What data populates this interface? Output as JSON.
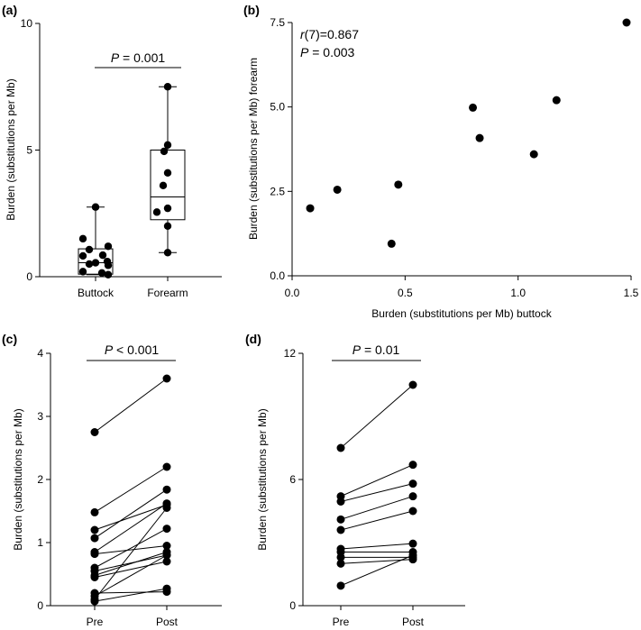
{
  "chart_data": [
    {
      "panel": "(a)",
      "type": "box",
      "ylabel": "Burden (substitutions per Mb)",
      "ylim": [
        0,
        10
      ],
      "yticks": [
        0,
        5,
        10
      ],
      "categories": [
        "Buttock",
        "Forearm"
      ],
      "groups": [
        {
          "name": "Buttock",
          "points": [
            2.75,
            1.5,
            1.2,
            1.07,
            0.85,
            0.82,
            0.6,
            0.55,
            0.5,
            0.45,
            0.2,
            0.15,
            0.08
          ],
          "box": {
            "min": 0.08,
            "q1": 0.1,
            "median": 0.55,
            "q3": 1.1,
            "max": 2.75
          }
        },
        {
          "name": "Forearm",
          "points": [
            7.5,
            5.2,
            4.95,
            4.1,
            3.6,
            2.7,
            2.55,
            2.0,
            0.95
          ],
          "box": {
            "min": 0.95,
            "q1": 2.25,
            "median": 3.15,
            "q3": 5.0,
            "max": 7.5
          }
        }
      ],
      "annotations": [
        {
          "text": "P = 0.001"
        }
      ]
    },
    {
      "panel": "(b)",
      "type": "scatter",
      "xlabel": "Burden (substitutions per Mb) buttock",
      "ylabel": "Burden (substitutions per Mb) forearm",
      "xlim": [
        0,
        1.5
      ],
      "ylim": [
        0,
        7.5
      ],
      "xticks": [
        0.0,
        0.5,
        1.0,
        1.5
      ],
      "yticks": [
        0.0,
        2.5,
        5.0,
        7.5
      ],
      "x": [
        0.08,
        0.2,
        0.44,
        0.47,
        0.8,
        0.83,
        1.07,
        1.17,
        1.48
      ],
      "y": [
        2.0,
        2.55,
        0.95,
        2.7,
        4.98,
        4.08,
        3.6,
        5.2,
        7.5
      ],
      "annotations": [
        {
          "text": "r(7)=0.867"
        },
        {
          "text": "P = 0.003"
        }
      ]
    },
    {
      "panel": "(c)",
      "type": "line",
      "ylabel": "Burden (substitutions per Mb)",
      "ylim": [
        0,
        4
      ],
      "yticks": [
        0,
        1,
        2,
        3,
        4
      ],
      "categories": [
        "Pre",
        "Post"
      ],
      "pairs": [
        [
          2.75,
          3.6
        ],
        [
          1.48,
          2.2
        ],
        [
          1.2,
          1.6
        ],
        [
          1.07,
          1.84
        ],
        [
          0.85,
          1.62
        ],
        [
          0.82,
          0.95
        ],
        [
          0.6,
          1.22
        ],
        [
          0.55,
          0.8
        ],
        [
          0.48,
          0.85
        ],
        [
          0.45,
          0.7
        ],
        [
          0.2,
          0.22
        ],
        [
          0.15,
          0.8
        ],
        [
          0.1,
          1.55
        ],
        [
          0.07,
          0.27
        ]
      ],
      "annotations": [
        {
          "text": "P < 0.001"
        }
      ]
    },
    {
      "panel": "(d)",
      "type": "line",
      "ylabel": "Burden (substitutions per Mb)",
      "ylim": [
        0,
        12
      ],
      "yticks": [
        0,
        6,
        12
      ],
      "categories": [
        "Pre",
        "Post"
      ],
      "pairs": [
        [
          7.5,
          10.5
        ],
        [
          5.2,
          6.7
        ],
        [
          4.95,
          5.8
        ],
        [
          4.1,
          5.2
        ],
        [
          3.6,
          4.5
        ],
        [
          2.7,
          2.95
        ],
        [
          2.55,
          2.55
        ],
        [
          2.3,
          2.3
        ],
        [
          2.0,
          2.2
        ],
        [
          0.95,
          2.4
        ]
      ],
      "annotations": [
        {
          "text": "P = 0.01"
        }
      ]
    }
  ]
}
